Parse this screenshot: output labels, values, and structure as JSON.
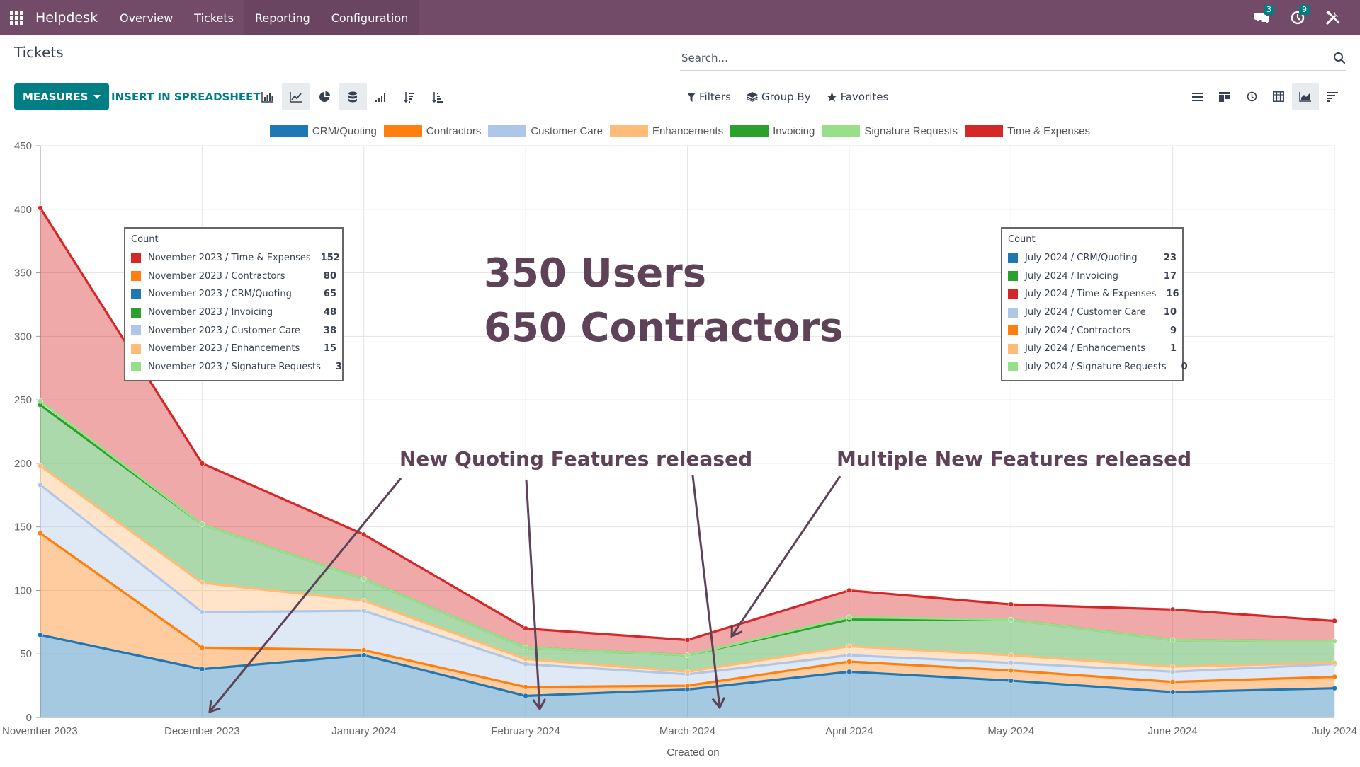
{
  "navbar": {
    "brand": "Helpdesk",
    "menu": [
      "Overview",
      "Tickets",
      "Reporting",
      "Configuration"
    ],
    "messages_count": "3",
    "activities_count": "9"
  },
  "control_panel": {
    "breadcrumb": "Tickets",
    "search_placeholder": "Search...",
    "measures_label": "MEASURES",
    "insert_label": "INSERT IN SPREADSHEET",
    "filters_label": "Filters",
    "groupby_label": "Group By",
    "favorites_label": "Favorites"
  },
  "chart_data": {
    "type": "area",
    "stacked": true,
    "xlabel": "Created on",
    "ylabel": "",
    "ylim": [
      0,
      450
    ],
    "y_ticks": [
      0,
      50,
      100,
      150,
      200,
      250,
      300,
      350,
      400,
      450
    ],
    "x": [
      "November 2023",
      "December 2023",
      "January 2024",
      "February 2024",
      "March 2024",
      "April 2024",
      "May 2024",
      "June 2024",
      "July 2024"
    ],
    "grid": true,
    "legend_position": "top",
    "series": [
      {
        "name": "CRM/Quoting",
        "color": "#1f77b4",
        "values": [
          65,
          38,
          49,
          17,
          22,
          36,
          29,
          20,
          23
        ]
      },
      {
        "name": "Contractors",
        "color": "#ff7f0e",
        "values": [
          80,
          17,
          4,
          7,
          3,
          8,
          8,
          8,
          9
        ]
      },
      {
        "name": "Customer Care",
        "color": "#aec7e8",
        "values": [
          38,
          28,
          31,
          18,
          9,
          5,
          6,
          8,
          10
        ]
      },
      {
        "name": "Enhancements",
        "color": "#ffbb78",
        "values": [
          15,
          23,
          8,
          4,
          2,
          7,
          6,
          4,
          1
        ]
      },
      {
        "name": "Invoicing",
        "color": "#2ca02c",
        "values": [
          48,
          46,
          17,
          9,
          13,
          21,
          28,
          21,
          17
        ]
      },
      {
        "name": "Signature Requests",
        "color": "#98df8a",
        "values": [
          3,
          0,
          0,
          0,
          0,
          2,
          0,
          0,
          0
        ]
      },
      {
        "name": "Time & Expenses",
        "color": "#d62728",
        "values": [
          152,
          48,
          35,
          15,
          12,
          21,
          12,
          24,
          16
        ]
      }
    ]
  },
  "tooltips": [
    {
      "title": "Count",
      "rows": [
        {
          "label": "November 2023 / Time & Expenses",
          "value": "152",
          "color": "#d62728"
        },
        {
          "label": "November 2023 / Contractors",
          "value": "80",
          "color": "#ff7f0e"
        },
        {
          "label": "November 2023 / CRM/Quoting",
          "value": "65",
          "color": "#1f77b4"
        },
        {
          "label": "November 2023 / Invoicing",
          "value": "48",
          "color": "#2ca02c"
        },
        {
          "label": "November 2023 / Customer Care",
          "value": "38",
          "color": "#aec7e8"
        },
        {
          "label": "November 2023 / Enhancements",
          "value": "15",
          "color": "#ffbb78"
        },
        {
          "label": "November 2023 / Signature Requests",
          "value": "3",
          "color": "#98df8a"
        }
      ]
    },
    {
      "title": "Count",
      "rows": [
        {
          "label": "July 2024 / CRM/Quoting",
          "value": "23",
          "color": "#1f77b4"
        },
        {
          "label": "July 2024 / Invoicing",
          "value": "17",
          "color": "#2ca02c"
        },
        {
          "label": "July 2024 / Time & Expenses",
          "value": "16",
          "color": "#d62728"
        },
        {
          "label": "July 2024 / Customer Care",
          "value": "10",
          "color": "#aec7e8"
        },
        {
          "label": "July 2024 / Contractors",
          "value": "9",
          "color": "#ff7f0e"
        },
        {
          "label": "July 2024 / Enhancements",
          "value": "1",
          "color": "#ffbb78"
        },
        {
          "label": "July 2024 / Signature Requests",
          "value": "0",
          "color": "#98df8a"
        }
      ]
    }
  ],
  "annotations": {
    "users_line": "350 Users",
    "contractors_line": "650 Contractors",
    "quoting_release": "New Quoting Features released",
    "multi_release": "Multiple New Features released"
  }
}
